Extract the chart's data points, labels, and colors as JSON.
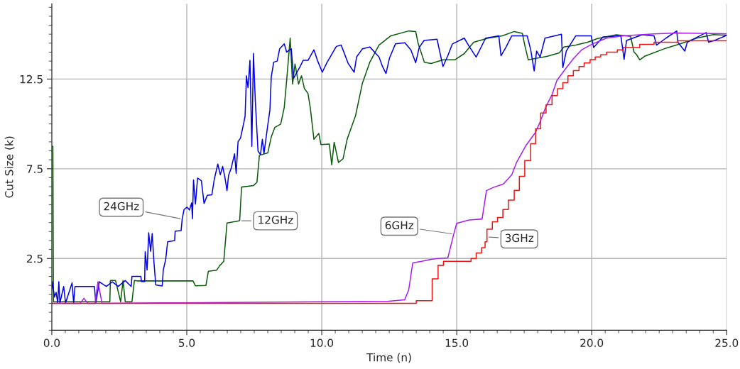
{
  "chart_data": {
    "type": "line",
    "xlabel": "Time (n)",
    "ylabel": "Cut Size (k)",
    "xlim": [
      0,
      25
    ],
    "ylim": [
      -1.5,
      16.7
    ],
    "xticks": [
      {
        "value": 0,
        "label": "0.0"
      },
      {
        "value": 5,
        "label": "5.0"
      },
      {
        "value": 10,
        "label": "10.0"
      },
      {
        "value": 15,
        "label": "15.0"
      },
      {
        "value": 20,
        "label": "20.0"
      },
      {
        "value": 25,
        "label": "25.0"
      }
    ],
    "yticks": [
      2.5,
      7.5,
      12.5
    ],
    "grid": true,
    "legend": false,
    "series": [
      {
        "color": "#0a5c0a",
        "x": [
          0.0,
          0.04,
          0.06,
          2.15,
          2.17,
          2.36,
          2.55,
          2.64,
          2.72,
          2.97,
          3.06,
          3.16,
          5.23,
          5.32,
          5.71,
          5.8,
          6.11,
          6.22,
          6.37,
          6.49,
          6.9,
          6.96,
          7.03,
          7.47,
          7.6,
          7.69,
          8.0,
          8.13,
          8.26,
          8.48,
          8.61,
          8.7,
          8.83,
          8.92,
          9.01,
          9.14,
          9.25,
          9.36,
          9.49,
          9.58,
          9.71,
          9.89,
          9.97,
          10.28,
          10.37,
          10.46,
          10.62,
          10.79,
          10.94,
          11.25,
          11.51,
          11.78,
          12.12,
          12.56,
          13.22,
          13.48,
          13.57,
          13.8,
          14.05,
          14.49,
          14.93,
          15.28,
          15.63,
          16.16,
          16.69,
          17.13,
          17.43,
          17.52,
          17.65,
          18.36,
          18.8,
          18.97,
          19.41,
          19.85,
          20.2,
          20.91,
          21.44,
          21.57,
          21.66,
          21.78,
          21.96,
          22.75,
          23.28,
          23.89,
          24.51,
          25.0
        ],
        "values": [
          8.75,
          8.75,
          0.09,
          0.09,
          1.27,
          1.27,
          0.09,
          1.27,
          0.09,
          0.09,
          1.27,
          1.25,
          1.25,
          0.98,
          1.0,
          1.79,
          1.85,
          2.1,
          2.34,
          4.48,
          4.59,
          4.62,
          6.48,
          6.56,
          6.75,
          8.25,
          8.38,
          9.27,
          9.8,
          9.99,
          10.91,
          12.42,
          14.78,
          12.22,
          13.34,
          12.22,
          12.68,
          11.96,
          11.7,
          10.85,
          9.14,
          9.47,
          8.85,
          8.88,
          7.72,
          8.98,
          7.85,
          8.06,
          9.14,
          10.45,
          12.29,
          13.44,
          14.39,
          14.91,
          15.18,
          15.15,
          14.49,
          13.44,
          13.37,
          13.57,
          13.57,
          13.92,
          14.55,
          14.78,
          14.91,
          15.15,
          15.05,
          14.39,
          13.57,
          13.77,
          13.96,
          14.29,
          14.39,
          14.55,
          14.75,
          14.97,
          14.88,
          14.0,
          13.86,
          13.57,
          13.77,
          14.22,
          14.46,
          14.78,
          14.98,
          14.94
        ]
      },
      {
        "color": "#0000e6",
        "x": [
          0.0,
          0.02,
          0.1,
          0.16,
          0.22,
          0.26,
          0.3,
          0.44,
          0.51,
          0.75,
          0.81,
          0.86,
          1.58,
          1.63,
          1.76,
          2.02,
          2.24,
          2.46,
          2.72,
          2.94,
          2.97,
          3.3,
          3.32,
          3.44,
          3.46,
          3.53,
          3.59,
          3.66,
          3.72,
          3.78,
          3.85,
          4.09,
          4.13,
          4.22,
          4.29,
          4.55,
          4.57,
          4.79,
          4.83,
          4.9,
          5.01,
          5.1,
          5.18,
          5.21,
          5.25,
          5.32,
          5.4,
          5.54,
          5.64,
          5.76,
          5.93,
          6.02,
          6.15,
          6.24,
          6.33,
          6.41,
          6.49,
          6.55,
          6.64,
          6.77,
          6.83,
          6.9,
          6.99,
          7.12,
          7.16,
          7.21,
          7.27,
          7.34,
          7.41,
          7.47,
          7.54,
          7.64,
          7.73,
          7.8,
          7.86,
          8.0,
          8.08,
          8.13,
          8.22,
          8.35,
          8.44,
          8.61,
          8.7,
          8.87,
          8.96,
          9.18,
          9.31,
          9.49,
          9.71,
          9.84,
          10.02,
          10.19,
          10.54,
          10.72,
          10.98,
          11.2,
          11.29,
          11.51,
          11.78,
          12.12,
          12.25,
          12.38,
          12.51,
          12.73,
          13.08,
          13.3,
          13.48,
          13.61,
          13.79,
          14.27,
          14.49,
          14.67,
          14.84,
          15.28,
          15.46,
          15.72,
          16.07,
          16.56,
          16.64,
          16.82,
          17.04,
          17.61,
          17.74,
          17.87,
          17.96,
          18.09,
          18.27,
          18.88,
          18.93,
          19.06,
          19.41,
          19.98,
          20.07,
          20.42,
          21.08,
          21.2,
          21.29,
          21.87,
          22.31,
          22.4,
          22.75,
          23.15,
          23.19,
          23.45,
          23.54,
          24.24,
          24.33,
          24.6,
          25.0
        ],
        "values": [
          0.81,
          1.2,
          0.35,
          0.61,
          0.02,
          1.2,
          0.02,
          0.94,
          0.02,
          1.14,
          0.02,
          0.94,
          0.94,
          0.02,
          1.2,
          0.94,
          1.2,
          0.94,
          1.27,
          0.94,
          1.5,
          1.5,
          1.22,
          1.22,
          2.88,
          1.86,
          3.93,
          2.9,
          3.89,
          2.38,
          1.03,
          0.97,
          1.86,
          2.45,
          3.43,
          3.5,
          4.02,
          4.05,
          4.7,
          5.23,
          5.36,
          5.2,
          5.6,
          4.72,
          6.88,
          5.53,
          6.98,
          6.84,
          5.57,
          6.02,
          6.05,
          6.92,
          7.76,
          7.17,
          7.63,
          7.04,
          6.28,
          7.15,
          7.5,
          8.33,
          7.24,
          9.01,
          9.21,
          10.12,
          10.43,
          12.68,
          12.02,
          13.54,
          8.75,
          13.93,
          11.24,
          8.48,
          8.29,
          9.14,
          8.35,
          9.93,
          10.78,
          12.62,
          13.44,
          13.5,
          14.19,
          14.46,
          14.0,
          14.19,
          12.55,
          13.14,
          13.54,
          13.54,
          14.13,
          13.54,
          12.88,
          13.41,
          14.32,
          14.39,
          13.37,
          12.88,
          13.73,
          14.19,
          14.29,
          13.73,
          13.2,
          12.81,
          13.67,
          14.46,
          14.52,
          14.13,
          13.41,
          14.26,
          14.65,
          14.72,
          13.2,
          13.8,
          14.46,
          14.78,
          14.32,
          13.73,
          14.78,
          14.91,
          13.8,
          14.26,
          14.91,
          14.91,
          14.13,
          12.95,
          14.06,
          13.73,
          14.78,
          15.0,
          13.14,
          14.06,
          14.91,
          14.91,
          14.26,
          14.85,
          14.91,
          13.6,
          14.65,
          14.97,
          14.91,
          14.39,
          14.78,
          15.18,
          14.55,
          14.06,
          14.55,
          15.09,
          14.55,
          14.68,
          14.94
        ]
      },
      {
        "color": "#a81ef0",
        "x": [
          0.0,
          1.05,
          1.19,
          1.33,
          1.6,
          1.71,
          1.86,
          12.47,
          13.07,
          13.22,
          13.37,
          13.7,
          14.05,
          14.31,
          14.67,
          14.89,
          15.0,
          15.46,
          15.94,
          16.1,
          16.34,
          16.73,
          17.04,
          17.21,
          17.57,
          17.92,
          18.09,
          18.31,
          18.53,
          18.71,
          18.97,
          19.32,
          19.63,
          20.03,
          20.55,
          21.17,
          22.31,
          23.19,
          25.0
        ],
        "values": [
          0.0,
          0.0,
          0.28,
          0.0,
          0.0,
          1.2,
          0.0,
          0.12,
          0.2,
          0.74,
          2.25,
          2.34,
          2.45,
          2.5,
          2.53,
          3.86,
          4.46,
          4.65,
          4.7,
          6.28,
          6.45,
          6.65,
          7.17,
          7.83,
          8.81,
          9.53,
          10.12,
          10.98,
          11.63,
          12.42,
          12.95,
          13.63,
          14.13,
          14.46,
          14.78,
          14.91,
          15.02,
          15.07,
          15.02
        ]
      },
      {
        "type": "step",
        "color": "#f01414",
        "x": [
          0.0,
          13.5,
          14.09,
          14.31,
          14.51,
          15.53,
          15.72,
          15.92,
          16.05,
          16.12,
          16.32,
          16.51,
          16.71,
          16.91,
          17.13,
          17.32,
          17.52,
          17.74,
          17.92,
          18.11,
          18.31,
          18.53,
          18.73,
          18.93,
          19.12,
          19.32,
          19.53,
          19.72,
          19.94,
          20.13,
          20.33,
          20.55,
          20.95,
          21.17,
          21.78,
          22.31,
          23.19,
          25.0
        ],
        "values": [
          0.0,
          0.15,
          1.36,
          2.12,
          2.34,
          2.5,
          2.81,
          3.1,
          3.43,
          4.13,
          4.55,
          4.78,
          5.23,
          5.75,
          6.3,
          7.08,
          7.96,
          8.9,
          9.73,
          10.61,
          11.07,
          11.58,
          11.96,
          12.3,
          12.68,
          12.97,
          13.2,
          13.4,
          13.58,
          13.73,
          13.85,
          14.0,
          14.13,
          14.26,
          14.43,
          14.55,
          14.63,
          14.63
        ]
      }
    ],
    "annotations": [
      {
        "text": "24GHz",
        "x": 4.83,
        "y": 4.7
      },
      {
        "text": "12GHz",
        "x": 6.96,
        "y": 4.6
      },
      {
        "text": "6GHz",
        "x": 14.89,
        "y": 3.86
      },
      {
        "text": "3GHz",
        "x": 16.12,
        "y": 3.7
      }
    ]
  }
}
